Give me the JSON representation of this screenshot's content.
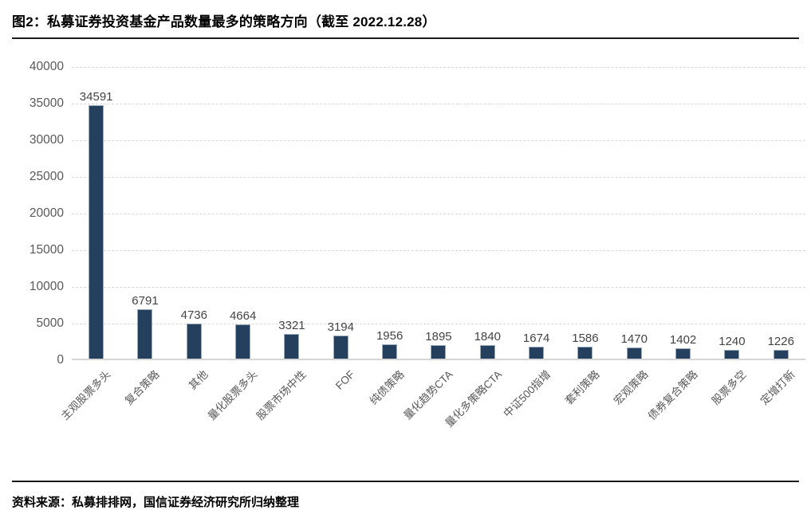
{
  "title": "图2：私募证券投资基金产品数量最多的策略方向（截至 2022.12.28）",
  "footer": {
    "source": "资料来源：私募排排网，国信证券经济研究所归纳整理"
  },
  "chart_data": {
    "type": "bar",
    "title": "私募证券投资基金产品数量最多的策略方向（截至 2022.12.28）",
    "categories": [
      "主观股票多头",
      "复合策略",
      "其他",
      "量化股票多头",
      "股票市场中性",
      "FOF",
      "纯债策略",
      "量化趋势CTA",
      "量化多策略CTA",
      "中证500指增",
      "套利策略",
      "宏观策略",
      "债券复合策略",
      "股票多空",
      "定增打新"
    ],
    "values": [
      34591,
      6791,
      4736,
      4664,
      3321,
      3194,
      1956,
      1895,
      1840,
      1674,
      1586,
      1470,
      1402,
      1240,
      1226
    ],
    "xlabel": "",
    "ylabel": "",
    "ylim": [
      0,
      40000
    ],
    "y_ticks": [
      0,
      5000,
      10000,
      15000,
      20000,
      25000,
      30000,
      35000,
      40000
    ],
    "grid": true,
    "grid_style": "dashed",
    "value_labels": true,
    "x_label_rotation_deg": 45,
    "legend": false,
    "bar_color": "#24405E",
    "bar_border_color": "#9aabbd",
    "grid_color": "#d9d9d9",
    "tick_label_color": "#595959",
    "value_label_color": "#444444"
  }
}
